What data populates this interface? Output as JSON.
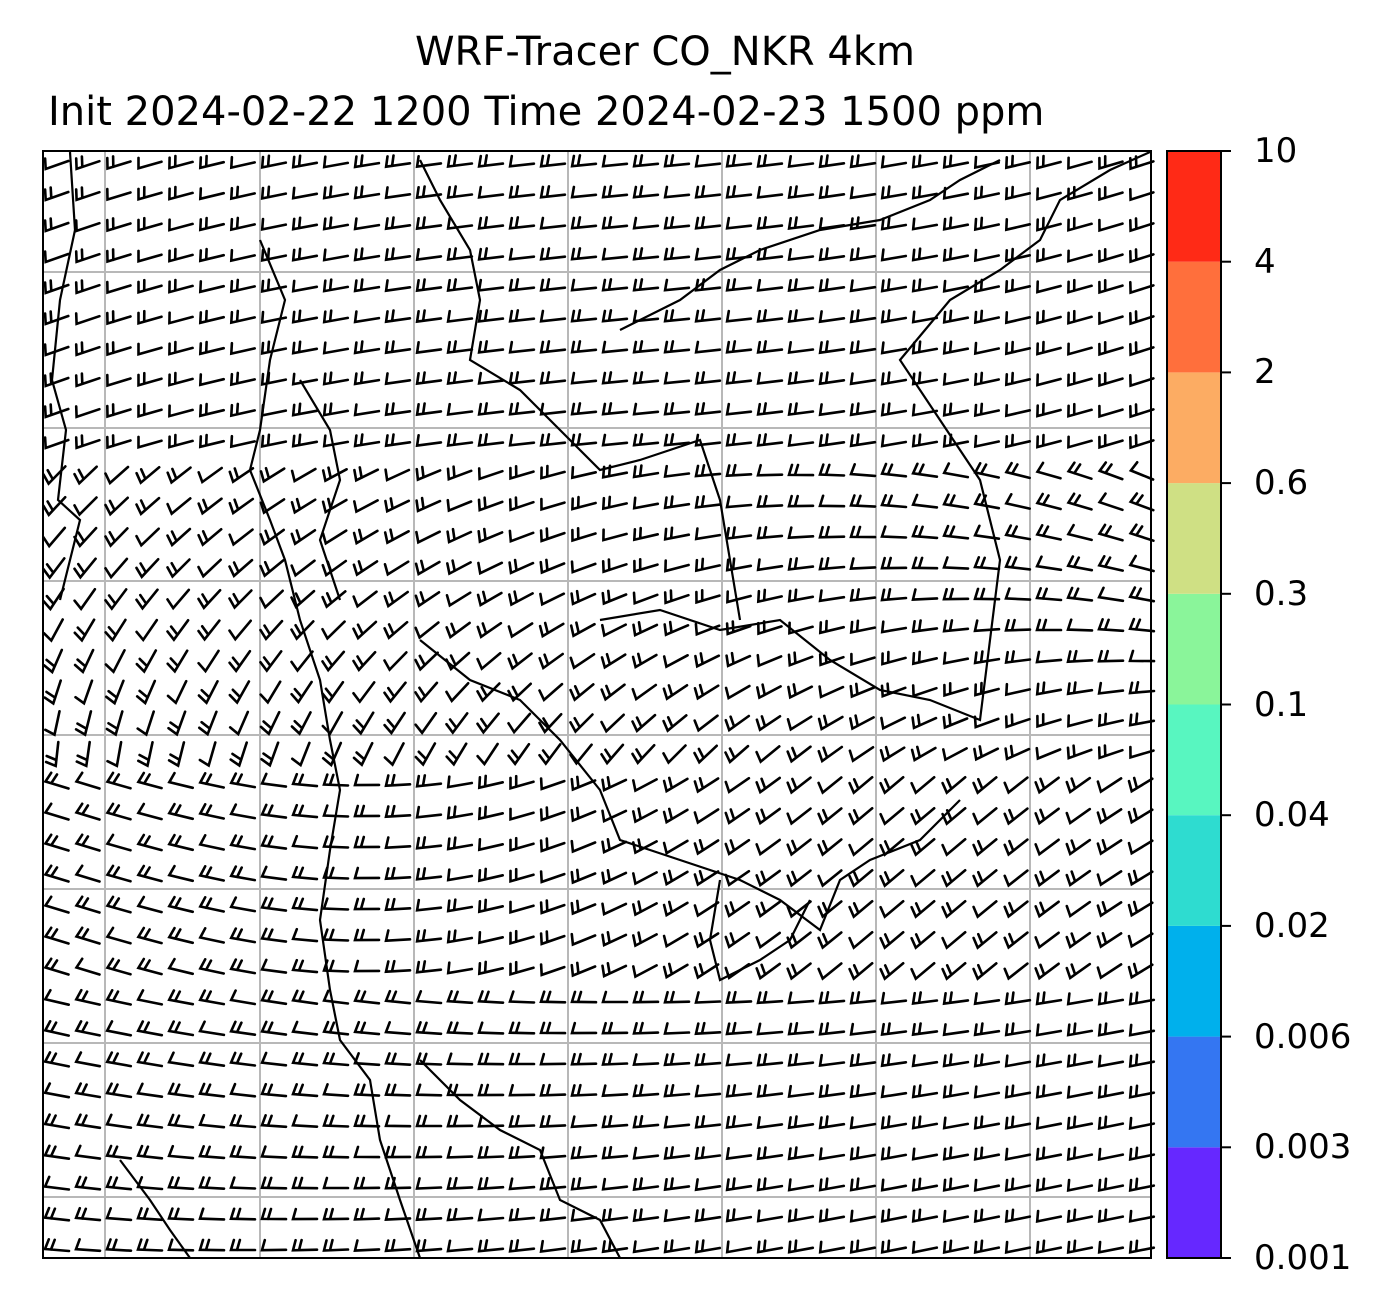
{
  "title": {
    "line1": "WRF-Tracer CO_NKR 4km",
    "line2": "Init 2024-02-22 1200 Time 2024-02-23 1500 ppm"
  },
  "map": {
    "gridlines": true,
    "wind_barbs": true,
    "coastlines": true,
    "country_borders": true
  },
  "colorbar": {
    "levels": [
      "0.001",
      "0.003",
      "0.006",
      "0.02",
      "0.04",
      "0.1",
      "0.3",
      "0.6",
      "2",
      "4",
      "10"
    ],
    "colors": [
      "#6628ff",
      "#3476f2",
      "#00b0ec",
      "#2edcd0",
      "#58f6c0",
      "#8af59a",
      "#cfe084",
      "#fcac63",
      "#ff6f3c",
      "#ff2a16"
    ]
  }
}
